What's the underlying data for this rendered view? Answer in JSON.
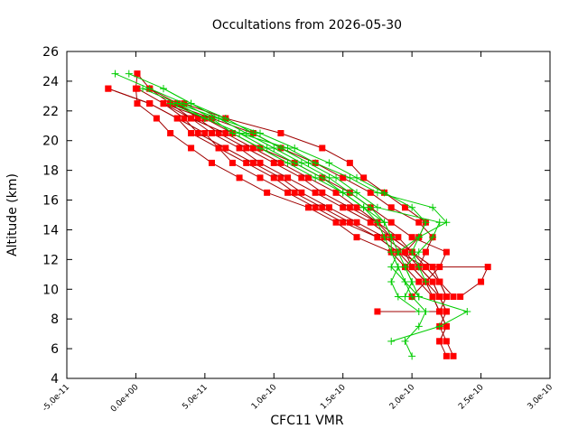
{
  "chart_data": {
    "type": "line",
    "title": "Occultations from 2026-05-30",
    "xlabel": "CFC11 VMR",
    "ylabel": "Altitude (km)",
    "xlim": [
      -5e-11,
      3e-10
    ],
    "ylim": [
      4,
      26
    ],
    "xticks": [
      -5e-11,
      0,
      5e-11,
      1e-10,
      1.5e-10,
      2e-10,
      2.5e-10,
      3e-10
    ],
    "xtick_labels": [
      "-5.0e-11",
      "0.0e+00",
      "5.0e-11",
      "1.0e-10",
      "1.5e-10",
      "2.0e-10",
      "2.5e-10",
      "3.0e-10"
    ],
    "yticks": [
      4,
      6,
      8,
      10,
      12,
      14,
      16,
      18,
      20,
      22,
      24,
      26
    ],
    "ytick_labels": [
      "4",
      "6",
      "8",
      "10",
      "12",
      "14",
      "16",
      "18",
      "20",
      "22",
      "24",
      "26"
    ],
    "grid": false,
    "legend": "none",
    "series": [
      {
        "color": "#ff0000",
        "marker": "square",
        "line_color": "#a00000",
        "points": [
          [
            1e-12,
            24.5
          ],
          [
            0,
            23.5
          ],
          [
            1e-12,
            22.5
          ],
          [
            1.5e-11,
            21.5
          ],
          [
            2.5e-11,
            20.5
          ],
          [
            4e-11,
            19.5
          ],
          [
            5.5e-11,
            18.5
          ],
          [
            7.5e-11,
            17.5
          ],
          [
            9.5e-11,
            16.5
          ],
          [
            1.25e-10,
            15.5
          ],
          [
            1.45e-10,
            14.5
          ],
          [
            1.6e-10,
            13.5
          ],
          [
            1.85e-10,
            12.5
          ],
          [
            1.95e-10,
            11.5
          ],
          [
            2.05e-10,
            10.5
          ],
          [
            2.15e-10,
            9.5
          ],
          [
            2.2e-10,
            8.5
          ],
          [
            2.25e-10,
            7.5
          ],
          [
            2.2e-10,
            6.5
          ],
          [
            2.25e-10,
            5.5
          ]
        ]
      },
      {
        "color": "#ff0000",
        "marker": "square",
        "line_color": "#a00000",
        "points": [
          [
            -2e-11,
            23.5
          ],
          [
            1e-11,
            22.5
          ],
          [
            3e-11,
            21.5
          ],
          [
            4e-11,
            20.5
          ],
          [
            6e-11,
            19.5
          ],
          [
            7e-11,
            18.5
          ],
          [
            9e-11,
            17.5
          ],
          [
            1.1e-10,
            16.5
          ],
          [
            1.3e-10,
            15.5
          ],
          [
            1.5e-10,
            14.5
          ],
          [
            1.75e-10,
            13.5
          ],
          [
            1.9e-10,
            12.5
          ],
          [
            2e-10,
            11.5
          ],
          [
            2.1e-10,
            10.5
          ],
          [
            2.2e-10,
            9.5
          ],
          [
            2.25e-10,
            8.5
          ],
          [
            2.2e-10,
            7.5
          ],
          [
            2.25e-10,
            6.5
          ],
          [
            2.3e-10,
            5.5
          ]
        ]
      },
      {
        "color": "#ff0000",
        "marker": "square",
        "line_color": "#a00000",
        "points": [
          [
            -2e-11,
            23.5
          ],
          [
            1e-11,
            22.5
          ],
          [
            3e-11,
            21.5
          ],
          [
            5e-11,
            20.5
          ],
          [
            6e-11,
            19.5
          ],
          [
            8e-11,
            18.5
          ],
          [
            1e-10,
            17.5
          ],
          [
            1.15e-10,
            16.5
          ],
          [
            1.35e-10,
            15.5
          ],
          [
            1.55e-10,
            14.5
          ],
          [
            1.75e-10,
            13.5
          ],
          [
            1.9e-10,
            12.5
          ],
          [
            2.1e-10,
            11.5
          ],
          [
            2.2e-10,
            10.5
          ],
          [
            2.25e-10,
            9.5
          ],
          [
            2.2e-10,
            8.5
          ],
          [
            2.25e-10,
            7.5
          ],
          [
            2.2e-10,
            6.5
          ]
        ]
      },
      {
        "color": "#ff0000",
        "marker": "square",
        "line_color": "#a00000",
        "points": [
          [
            1e-12,
            23.5
          ],
          [
            2e-11,
            22.5
          ],
          [
            3.5e-11,
            21.5
          ],
          [
            4.5e-11,
            20.5
          ],
          [
            6.5e-11,
            19.5
          ],
          [
            8.5e-11,
            18.5
          ],
          [
            1.05e-10,
            17.5
          ],
          [
            1.2e-10,
            16.5
          ],
          [
            1.4e-10,
            15.5
          ],
          [
            1.6e-10,
            14.5
          ],
          [
            1.8e-10,
            13.5
          ],
          [
            1.95e-10,
            12.5
          ],
          [
            2.05e-10,
            11.5
          ],
          [
            2.15e-10,
            10.5
          ],
          [
            2.2e-10,
            9.5
          ],
          [
            2.25e-10,
            8.5
          ]
        ]
      },
      {
        "color": "#ff0000",
        "marker": "square",
        "line_color": "#a00000",
        "points": [
          [
            1e-12,
            24.5
          ],
          [
            1e-11,
            23.5
          ],
          [
            2.5e-11,
            22.5
          ],
          [
            4e-11,
            21.5
          ],
          [
            5.5e-11,
            20.5
          ],
          [
            7.5e-11,
            19.5
          ],
          [
            9e-11,
            18.5
          ],
          [
            1.1e-10,
            17.5
          ],
          [
            1.3e-10,
            16.5
          ],
          [
            1.5e-10,
            15.5
          ],
          [
            1.7e-10,
            14.5
          ],
          [
            1.85e-10,
            13.5
          ],
          [
            2e-10,
            12.5
          ],
          [
            2.15e-10,
            11.5
          ],
          [
            2.2e-10,
            10.5
          ],
          [
            2.3e-10,
            9.5
          ]
        ]
      },
      {
        "color": "#ff0000",
        "marker": "square",
        "line_color": "#a00000",
        "points": [
          [
            1e-11,
            23.5
          ],
          [
            3e-11,
            22.5
          ],
          [
            4.5e-11,
            21.5
          ],
          [
            6e-11,
            20.5
          ],
          [
            8e-11,
            19.5
          ],
          [
            1e-10,
            18.5
          ],
          [
            1.2e-10,
            17.5
          ],
          [
            1.35e-10,
            16.5
          ],
          [
            1.55e-10,
            15.5
          ],
          [
            1.75e-10,
            14.5
          ],
          [
            1.9e-10,
            13.5
          ],
          [
            2e-10,
            12.5
          ],
          [
            2.1e-10,
            11.5
          ],
          [
            2.2e-10,
            10.5
          ],
          [
            2.25e-10,
            9.5
          ]
        ]
      },
      {
        "color": "#ff0000",
        "marker": "square",
        "line_color": "#a00000",
        "points": [
          [
            2e-11,
            22.5
          ],
          [
            4e-11,
            21.5
          ],
          [
            6.5e-11,
            20.5
          ],
          [
            8.5e-11,
            19.5
          ],
          [
            1.05e-10,
            18.5
          ],
          [
            1.25e-10,
            17.5
          ],
          [
            1.45e-10,
            16.5
          ],
          [
            1.6e-10,
            15.5
          ],
          [
            1.75e-10,
            14.5
          ],
          [
            1.85e-10,
            13.5
          ],
          [
            2e-10,
            12.5
          ],
          [
            2.15e-10,
            11.5
          ],
          [
            2.55e-10,
            11.5
          ],
          [
            2.5e-10,
            10.5
          ],
          [
            2.35e-10,
            9.5
          ]
        ]
      },
      {
        "color": "#ff0000",
        "marker": "square",
        "line_color": "#a00000",
        "points": [
          [
            2e-11,
            22.5
          ],
          [
            5e-11,
            21.5
          ],
          [
            7e-11,
            20.5
          ],
          [
            9e-11,
            19.5
          ],
          [
            1.15e-10,
            18.5
          ],
          [
            1.35e-10,
            17.5
          ],
          [
            1.55e-10,
            16.5
          ],
          [
            1.7e-10,
            15.5
          ],
          [
            1.85e-10,
            14.5
          ],
          [
            2e-10,
            13.5
          ],
          [
            2.25e-10,
            12.5
          ],
          [
            2.2e-10,
            11.5
          ],
          [
            2.1e-10,
            10.5
          ],
          [
            2e-10,
            9.5
          ]
        ]
      },
      {
        "color": "#ff0000",
        "marker": "square",
        "line_color": "#a00000",
        "points": [
          [
            2.5e-11,
            22.5
          ],
          [
            5.5e-11,
            21.5
          ],
          [
            8.5e-11,
            20.5
          ],
          [
            1.05e-10,
            19.5
          ],
          [
            1.3e-10,
            18.5
          ],
          [
            1.5e-10,
            17.5
          ],
          [
            1.7e-10,
            16.5
          ],
          [
            1.85e-10,
            15.5
          ],
          [
            2.05e-10,
            14.5
          ],
          [
            2.15e-10,
            13.5
          ],
          [
            2.1e-10,
            12.5
          ],
          [
            2.05e-10,
            11.5
          ],
          [
            2.15e-10,
            10.5
          ],
          [
            2.2e-10,
            9.5
          ]
        ]
      },
      {
        "color": "#ff0000",
        "marker": "square",
        "line_color": "#a00000",
        "points": [
          [
            3.5e-11,
            22.5
          ],
          [
            6.5e-11,
            21.5
          ],
          [
            1.05e-10,
            20.5
          ],
          [
            1.35e-10,
            19.5
          ],
          [
            1.55e-10,
            18.5
          ],
          [
            1.65e-10,
            17.5
          ],
          [
            1.8e-10,
            16.5
          ],
          [
            1.95e-10,
            15.5
          ],
          [
            2.1e-10,
            14.5
          ],
          [
            2.05e-10,
            13.5
          ],
          [
            1.95e-10,
            12.5
          ],
          [
            2e-10,
            11.5
          ],
          [
            2.1e-10,
            10.5
          ],
          [
            2.15e-10,
            9.5
          ],
          [
            2.2e-10,
            8.5
          ],
          [
            1.75e-10,
            8.5
          ]
        ]
      }
    ],
    "model_series": [
      {
        "color": "#00cc00",
        "marker": "plus",
        "points": [
          [
            -1.5e-11,
            24.5
          ],
          [
            1e-11,
            23.5
          ],
          [
            3.5e-11,
            22.5
          ],
          [
            5.5e-11,
            21.5
          ],
          [
            7e-11,
            20.5
          ],
          [
            9e-11,
            19.5
          ],
          [
            1.1e-10,
            18.5
          ],
          [
            1.3e-10,
            17.5
          ],
          [
            1.5e-10,
            16.5
          ],
          [
            1.65e-10,
            15.5
          ],
          [
            1.8e-10,
            14.5
          ],
          [
            1.85e-10,
            13.5
          ],
          [
            1.85e-10,
            12.5
          ],
          [
            1.9e-10,
            11.5
          ],
          [
            1.95e-10,
            10.5
          ],
          [
            2e-10,
            9.5
          ],
          [
            2.1e-10,
            8.5
          ],
          [
            2.05e-10,
            7.5
          ],
          [
            1.95e-10,
            6.5
          ],
          [
            2e-10,
            5.5
          ]
        ]
      },
      {
        "color": "#00cc00",
        "marker": "plus",
        "points": [
          [
            -5e-12,
            24.5
          ],
          [
            2e-11,
            23.5
          ],
          [
            4e-11,
            22.5
          ],
          [
            6e-11,
            21.5
          ],
          [
            8e-11,
            20.5
          ],
          [
            1e-10,
            19.5
          ],
          [
            1.2e-10,
            18.5
          ],
          [
            1.4e-10,
            17.5
          ],
          [
            1.55e-10,
            16.5
          ],
          [
            1.7e-10,
            15.5
          ],
          [
            1.8e-10,
            14.5
          ],
          [
            1.85e-10,
            13.5
          ],
          [
            1.9e-10,
            12.5
          ],
          [
            1.95e-10,
            11.5
          ],
          [
            2e-10,
            10.5
          ],
          [
            2.05e-10,
            9.5
          ],
          [
            2.4e-10,
            8.5
          ],
          [
            2.2e-10,
            7.5
          ],
          [
            1.85e-10,
            6.5
          ]
        ]
      },
      {
        "color": "#00cc00",
        "marker": "plus",
        "points": [
          [
            5e-12,
            23.5
          ],
          [
            3e-11,
            22.5
          ],
          [
            5e-11,
            21.5
          ],
          [
            7.5e-11,
            20.5
          ],
          [
            9.5e-11,
            19.5
          ],
          [
            1.15e-10,
            18.5
          ],
          [
            1.35e-10,
            17.5
          ],
          [
            1.5e-10,
            16.5
          ],
          [
            1.65e-10,
            15.5
          ],
          [
            1.75e-10,
            14.5
          ],
          [
            1.8e-10,
            13.5
          ],
          [
            1.85e-10,
            12.5
          ],
          [
            1.9e-10,
            11.5
          ],
          [
            1.85e-10,
            10.5
          ],
          [
            1.9e-10,
            9.5
          ],
          [
            2.05e-10,
            8.5
          ]
        ]
      },
      {
        "color": "#00cc00",
        "marker": "plus",
        "points": [
          [
            2e-11,
            23.5
          ],
          [
            4e-11,
            22.5
          ],
          [
            6.5e-11,
            21.5
          ],
          [
            8.5e-11,
            20.5
          ],
          [
            1.05e-10,
            19.5
          ],
          [
            1.25e-10,
            18.5
          ],
          [
            1.45e-10,
            17.5
          ],
          [
            1.6e-10,
            16.5
          ],
          [
            1.75e-10,
            15.5
          ],
          [
            2.2e-10,
            14.5
          ],
          [
            2.15e-10,
            13.5
          ],
          [
            2.05e-10,
            12.5
          ],
          [
            1.95e-10,
            11.5
          ],
          [
            2e-10,
            10.5
          ],
          [
            1.95e-10,
            9.5
          ]
        ]
      },
      {
        "color": "#00cc00",
        "marker": "plus",
        "points": [
          [
            2.5e-11,
            22.5
          ],
          [
            5e-11,
            21.5
          ],
          [
            7.5e-11,
            20.5
          ],
          [
            1.1e-10,
            19.5
          ],
          [
            1.3e-10,
            18.5
          ],
          [
            1.55e-10,
            17.5
          ],
          [
            1.75e-10,
            16.5
          ],
          [
            2.15e-10,
            15.5
          ],
          [
            2.25e-10,
            14.5
          ],
          [
            2.05e-10,
            13.5
          ],
          [
            1.9e-10,
            12.5
          ],
          [
            1.85e-10,
            11.5
          ],
          [
            1.95e-10,
            10.5
          ],
          [
            2.05e-10,
            9.5
          ]
        ]
      },
      {
        "color": "#00cc00",
        "marker": "plus",
        "points": [
          [
            3e-11,
            22.5
          ],
          [
            6e-11,
            21.5
          ],
          [
            9e-11,
            20.5
          ],
          [
            1.15e-10,
            19.5
          ],
          [
            1.4e-10,
            18.5
          ],
          [
            1.6e-10,
            17.5
          ],
          [
            1.8e-10,
            16.5
          ],
          [
            2e-10,
            15.5
          ],
          [
            2.1e-10,
            14.5
          ],
          [
            2.05e-10,
            13.5
          ],
          [
            2e-10,
            12.5
          ],
          [
            2.05e-10,
            11.5
          ],
          [
            2.1e-10,
            10.5
          ]
        ]
      }
    ]
  }
}
